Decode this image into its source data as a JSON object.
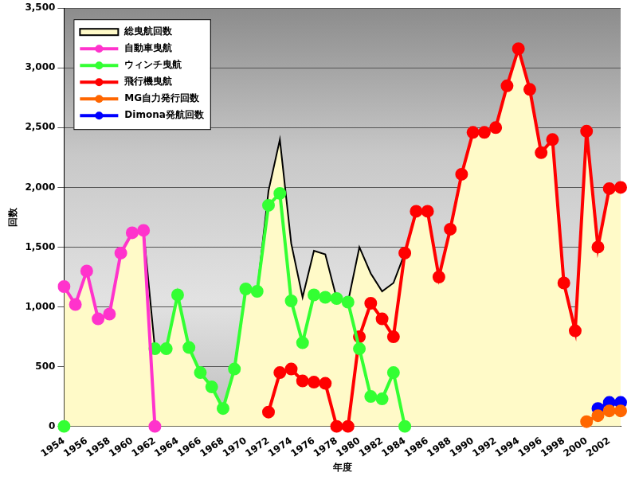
{
  "chart_data": {
    "type": "line",
    "x_label": "年度",
    "y_label": "回数",
    "categories": [
      "1954",
      null,
      "1956",
      null,
      "1958",
      null,
      "1960",
      null,
      "1962",
      null,
      "1964",
      null,
      "1966",
      null,
      "1968",
      null,
      "1970",
      null,
      "1972",
      null,
      "1974",
      null,
      "1976",
      null,
      "1978",
      null,
      "1980",
      null,
      "1982",
      null,
      "1984",
      null,
      "1986",
      null,
      "1988",
      null,
      "1990",
      null,
      "1992",
      null,
      "1994",
      null,
      "1996",
      null,
      "1998",
      null,
      "2000",
      null,
      "2002",
      null
    ],
    "series": [
      {
        "name": "総曳航回数",
        "type": "area",
        "color": "#000000",
        "marker": "none",
        "values": [
          1170,
          1020,
          1300,
          900,
          940,
          1450,
          1620,
          1640,
          650,
          650,
          1100,
          660,
          450,
          330,
          150,
          480,
          1150,
          1130,
          1970,
          2400,
          1530,
          1080,
          1470,
          1440,
          1070,
          1040,
          1500,
          1280,
          1130,
          1200,
          1450,
          1800,
          1800,
          1250,
          1650,
          2110,
          2460,
          2460,
          2500,
          2850,
          3160,
          2820,
          2290,
          2400,
          1200,
          800,
          2470,
          1500,
          1990,
          2000
        ]
      },
      {
        "name": "自動車曳航",
        "type": "line",
        "color": "#FF33CC",
        "marker": "circle",
        "values": [
          1170,
          1020,
          1300,
          900,
          940,
          1450,
          1620,
          1640,
          0,
          null,
          null,
          null,
          null,
          null,
          null,
          null,
          null,
          null,
          null,
          null,
          null,
          null,
          null,
          null,
          null,
          null,
          null,
          null,
          null,
          null,
          null,
          null,
          null,
          null,
          null,
          null,
          null,
          null,
          null,
          null,
          null,
          null,
          null,
          null,
          null,
          null,
          null,
          null,
          null,
          null
        ]
      },
      {
        "name": "ウィンチ曳航",
        "type": "line",
        "color": "#33FF33",
        "marker": "circle",
        "values": [
          0,
          null,
          null,
          null,
          null,
          null,
          null,
          null,
          650,
          650,
          1100,
          660,
          450,
          330,
          150,
          480,
          1150,
          1130,
          1850,
          1950,
          1050,
          700,
          1100,
          1080,
          1070,
          1040,
          650,
          250,
          230,
          450,
          0,
          null,
          null,
          null,
          null,
          null,
          null,
          null,
          null,
          null,
          null,
          null,
          null,
          null,
          null,
          null,
          null,
          null,
          null,
          null
        ]
      },
      {
        "name": "飛行機曳航",
        "type": "line",
        "color": "#FF0000",
        "marker": "circle",
        "values": [
          null,
          null,
          null,
          null,
          null,
          null,
          null,
          null,
          null,
          null,
          null,
          null,
          null,
          null,
          null,
          null,
          null,
          null,
          120,
          450,
          480,
          380,
          370,
          360,
          0,
          0,
          750,
          1030,
          900,
          750,
          1450,
          1800,
          1800,
          1250,
          1650,
          2110,
          2460,
          2460,
          2500,
          2850,
          3160,
          2820,
          2290,
          2400,
          1200,
          800,
          2470,
          1500,
          1990,
          2000
        ]
      },
      {
        "name": "MG自力発行回数",
        "type": "line",
        "color": "#FF6600",
        "marker": "circle",
        "values": [
          null,
          null,
          null,
          null,
          null,
          null,
          null,
          null,
          null,
          null,
          null,
          null,
          null,
          null,
          null,
          null,
          null,
          null,
          null,
          null,
          null,
          null,
          null,
          null,
          null,
          null,
          null,
          null,
          null,
          null,
          null,
          null,
          null,
          null,
          null,
          null,
          null,
          null,
          null,
          null,
          null,
          null,
          null,
          null,
          null,
          null,
          40,
          90,
          130,
          130
        ]
      },
      {
        "name": "Dimona発航回数",
        "type": "line",
        "color": "#0000FF",
        "marker": "circle",
        "values": [
          null,
          null,
          null,
          null,
          null,
          null,
          null,
          null,
          null,
          null,
          null,
          null,
          null,
          null,
          null,
          null,
          null,
          null,
          null,
          null,
          null,
          null,
          null,
          null,
          null,
          null,
          null,
          null,
          null,
          null,
          null,
          null,
          null,
          null,
          null,
          null,
          null,
          null,
          null,
          null,
          null,
          null,
          null,
          null,
          null,
          null,
          null,
          150,
          200,
          200
        ]
      }
    ],
    "ylim": [
      0,
      3500
    ],
    "yticks": [
      0,
      500,
      {
        "value": 1000,
        "label": "1,000"
      },
      {
        "value": 1500,
        "label": "1,500"
      },
      {
        "value": 2000,
        "label": "2,000"
      },
      {
        "value": 2500,
        "label": "2,500"
      },
      {
        "value": 3000,
        "label": "3,000"
      },
      {
        "value": 3500,
        "label": "3,500"
      }
    ],
    "grid": true,
    "legend": "top-left"
  }
}
